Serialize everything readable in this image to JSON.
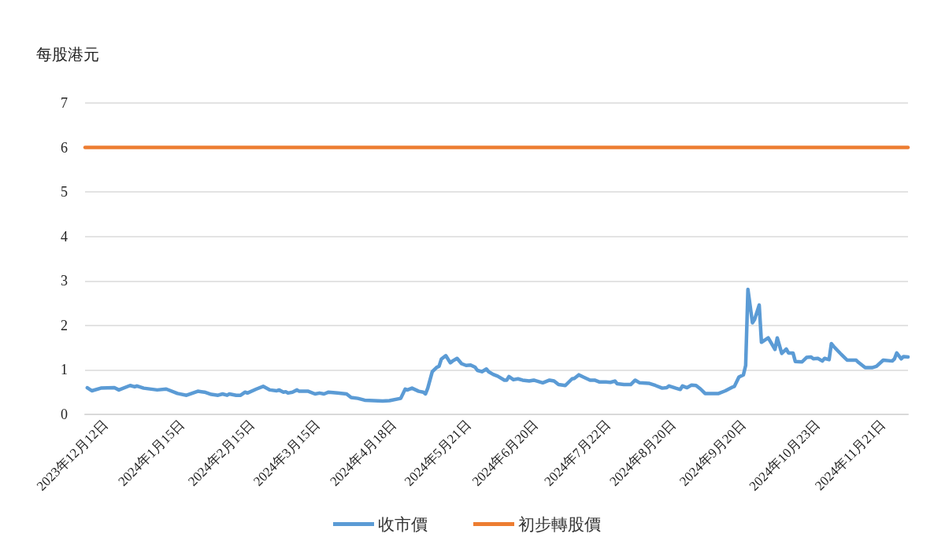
{
  "chart_data": {
    "type": "line",
    "ylabel": "每股港元",
    "xlim": [
      "2023-12-03",
      "2024-12-02"
    ],
    "xticks": [
      {
        "value": "2023-12-12",
        "label": "2023年12月12日"
      },
      {
        "value": "2024-01-15",
        "label": "2024年1月15日"
      },
      {
        "value": "2024-02-15",
        "label": "2024年2月15日"
      },
      {
        "value": "2024-03-15",
        "label": "2024年3月15日"
      },
      {
        "value": "2024-04-18",
        "label": "2024年4月18日"
      },
      {
        "value": "2024-05-21",
        "label": "2024年5月21日"
      },
      {
        "value": "2024-06-20",
        "label": "2024年6月20日"
      },
      {
        "value": "2024-07-22",
        "label": "2024年7月22日"
      },
      {
        "value": "2024-08-20",
        "label": "2024年8月20日"
      },
      {
        "value": "2024-09-20",
        "label": "2024年9月20日"
      },
      {
        "value": "2024-10-23",
        "label": "2024年10月23日"
      },
      {
        "value": "2024-11-21",
        "label": "2024年11月21日"
      }
    ],
    "ylim": [
      0,
      7
    ],
    "yticks": [
      0,
      1,
      2,
      3,
      4,
      5,
      6,
      7
    ],
    "grid": "y",
    "legend": "bottom",
    "marker": "none",
    "line_style": "solid",
    "series": [
      {
        "name": "收市價",
        "color": "#5b9bd5",
        "x": [
          "2023-12-04",
          "2023-12-06",
          "2023-12-10",
          "2023-12-16",
          "2023-12-18",
          "2023-12-23",
          "2023-12-25",
          "2023-12-26",
          "2023-12-29",
          "2024-01-04",
          "2024-01-08",
          "2024-01-13",
          "2024-01-17",
          "2024-01-22",
          "2024-01-25",
          "2024-01-28",
          "2024-01-31",
          "2024-02-02",
          "2024-02-04",
          "2024-02-05",
          "2024-02-08",
          "2024-02-10",
          "2024-02-12",
          "2024-02-13",
          "2024-02-17",
          "2024-02-20",
          "2024-02-23",
          "2024-02-26",
          "2024-02-27",
          "2024-02-29",
          "2024-03-01",
          "2024-03-02",
          "2024-03-04",
          "2024-03-06",
          "2024-03-07",
          "2024-03-11",
          "2024-03-14",
          "2024-03-16",
          "2024-03-18",
          "2024-03-20",
          "2024-03-24",
          "2024-03-28",
          "2024-03-30",
          "2024-04-02",
          "2024-04-05",
          "2024-04-09",
          "2024-04-13",
          "2024-04-16",
          "2024-04-21",
          "2024-04-23",
          "2024-04-24",
          "2024-04-26",
          "2024-04-29",
          "2024-05-01",
          "2024-05-02",
          "2024-05-03",
          "2024-05-05",
          "2024-05-07",
          "2024-05-08",
          "2024-05-09",
          "2024-05-11",
          "2024-05-13",
          "2024-05-14",
          "2024-05-16",
          "2024-05-18",
          "2024-05-20",
          "2024-05-22",
          "2024-05-24",
          "2024-05-25",
          "2024-05-27",
          "2024-05-29",
          "2024-05-30",
          "2024-06-01",
          "2024-06-03",
          "2024-06-06",
          "2024-06-07",
          "2024-06-08",
          "2024-06-10",
          "2024-06-12",
          "2024-06-14",
          "2024-06-17",
          "2024-06-19",
          "2024-06-23",
          "2024-06-26",
          "2024-06-28",
          "2024-06-30",
          "2024-07-03",
          "2024-07-06",
          "2024-07-07",
          "2024-07-09",
          "2024-07-11",
          "2024-07-14",
          "2024-07-16",
          "2024-07-18",
          "2024-07-21",
          "2024-07-23",
          "2024-07-25",
          "2024-07-26",
          "2024-07-29",
          "2024-08-01",
          "2024-08-03",
          "2024-08-05",
          "2024-08-09",
          "2024-08-12",
          "2024-08-15",
          "2024-08-17",
          "2024-08-18",
          "2024-08-21",
          "2024-08-23",
          "2024-08-24",
          "2024-08-26",
          "2024-08-28",
          "2024-08-30",
          "2024-09-01",
          "2024-09-03",
          "2024-09-09",
          "2024-09-12",
          "2024-09-15",
          "2024-09-16",
          "2024-09-18",
          "2024-09-20",
          "2024-09-21",
          "2024-09-22",
          "2024-09-24",
          "2024-09-25",
          "2024-09-27",
          "2024-09-28",
          "2024-10-01",
          "2024-10-04",
          "2024-10-05",
          "2024-10-07",
          "2024-10-09",
          "2024-10-10",
          "2024-10-12",
          "2024-10-13",
          "2024-10-16",
          "2024-10-18",
          "2024-10-20",
          "2024-10-21",
          "2024-10-23",
          "2024-10-25",
          "2024-10-26",
          "2024-10-28",
          "2024-10-29",
          "2024-10-30",
          "2024-11-02",
          "2024-11-03",
          "2024-11-05",
          "2024-11-09",
          "2024-11-10",
          "2024-11-13",
          "2024-11-16",
          "2024-11-18",
          "2024-11-21",
          "2024-11-25",
          "2024-11-26",
          "2024-11-27",
          "2024-11-29",
          "2024-11-30",
          "2024-12-02"
        ],
        "values": [
          0.6,
          0.53,
          0.59,
          0.6,
          0.55,
          0.65,
          0.62,
          0.64,
          0.59,
          0.55,
          0.57,
          0.47,
          0.43,
          0.52,
          0.5,
          0.45,
          0.43,
          0.46,
          0.43,
          0.46,
          0.43,
          0.43,
          0.5,
          0.48,
          0.57,
          0.63,
          0.55,
          0.53,
          0.55,
          0.5,
          0.51,
          0.48,
          0.5,
          0.55,
          0.52,
          0.52,
          0.46,
          0.48,
          0.46,
          0.5,
          0.48,
          0.46,
          0.38,
          0.36,
          0.32,
          0.31,
          0.3,
          0.31,
          0.36,
          0.57,
          0.55,
          0.59,
          0.52,
          0.5,
          0.46,
          0.59,
          0.96,
          1.06,
          1.08,
          1.24,
          1.32,
          1.16,
          1.2,
          1.26,
          1.14,
          1.1,
          1.11,
          1.06,
          0.99,
          0.96,
          1.02,
          0.96,
          0.9,
          0.86,
          0.77,
          0.77,
          0.85,
          0.78,
          0.8,
          0.77,
          0.75,
          0.77,
          0.71,
          0.77,
          0.75,
          0.67,
          0.65,
          0.8,
          0.81,
          0.89,
          0.84,
          0.77,
          0.77,
          0.73,
          0.73,
          0.72,
          0.75,
          0.69,
          0.67,
          0.67,
          0.77,
          0.71,
          0.7,
          0.65,
          0.59,
          0.6,
          0.64,
          0.59,
          0.56,
          0.64,
          0.6,
          0.66,
          0.65,
          0.57,
          0.47,
          0.47,
          0.53,
          0.61,
          0.63,
          0.84,
          0.89,
          1.1,
          2.81,
          2.06,
          2.14,
          2.46,
          1.62,
          1.72,
          1.46,
          1.72,
          1.37,
          1.47,
          1.38,
          1.38,
          1.19,
          1.18,
          1.28,
          1.29,
          1.25,
          1.26,
          1.2,
          1.26,
          1.23,
          1.59,
          1.53,
          1.37,
          1.32,
          1.22,
          1.22,
          1.17,
          1.05,
          1.05,
          1.08,
          1.22,
          1.2,
          1.25,
          1.38,
          1.25,
          1.3,
          1.29
        ]
      },
      {
        "name": "初步轉股價",
        "color": "#ed7d31",
        "x": [
          "2023-12-03",
          "2024-12-02"
        ],
        "values": [
          6,
          6
        ]
      }
    ]
  }
}
